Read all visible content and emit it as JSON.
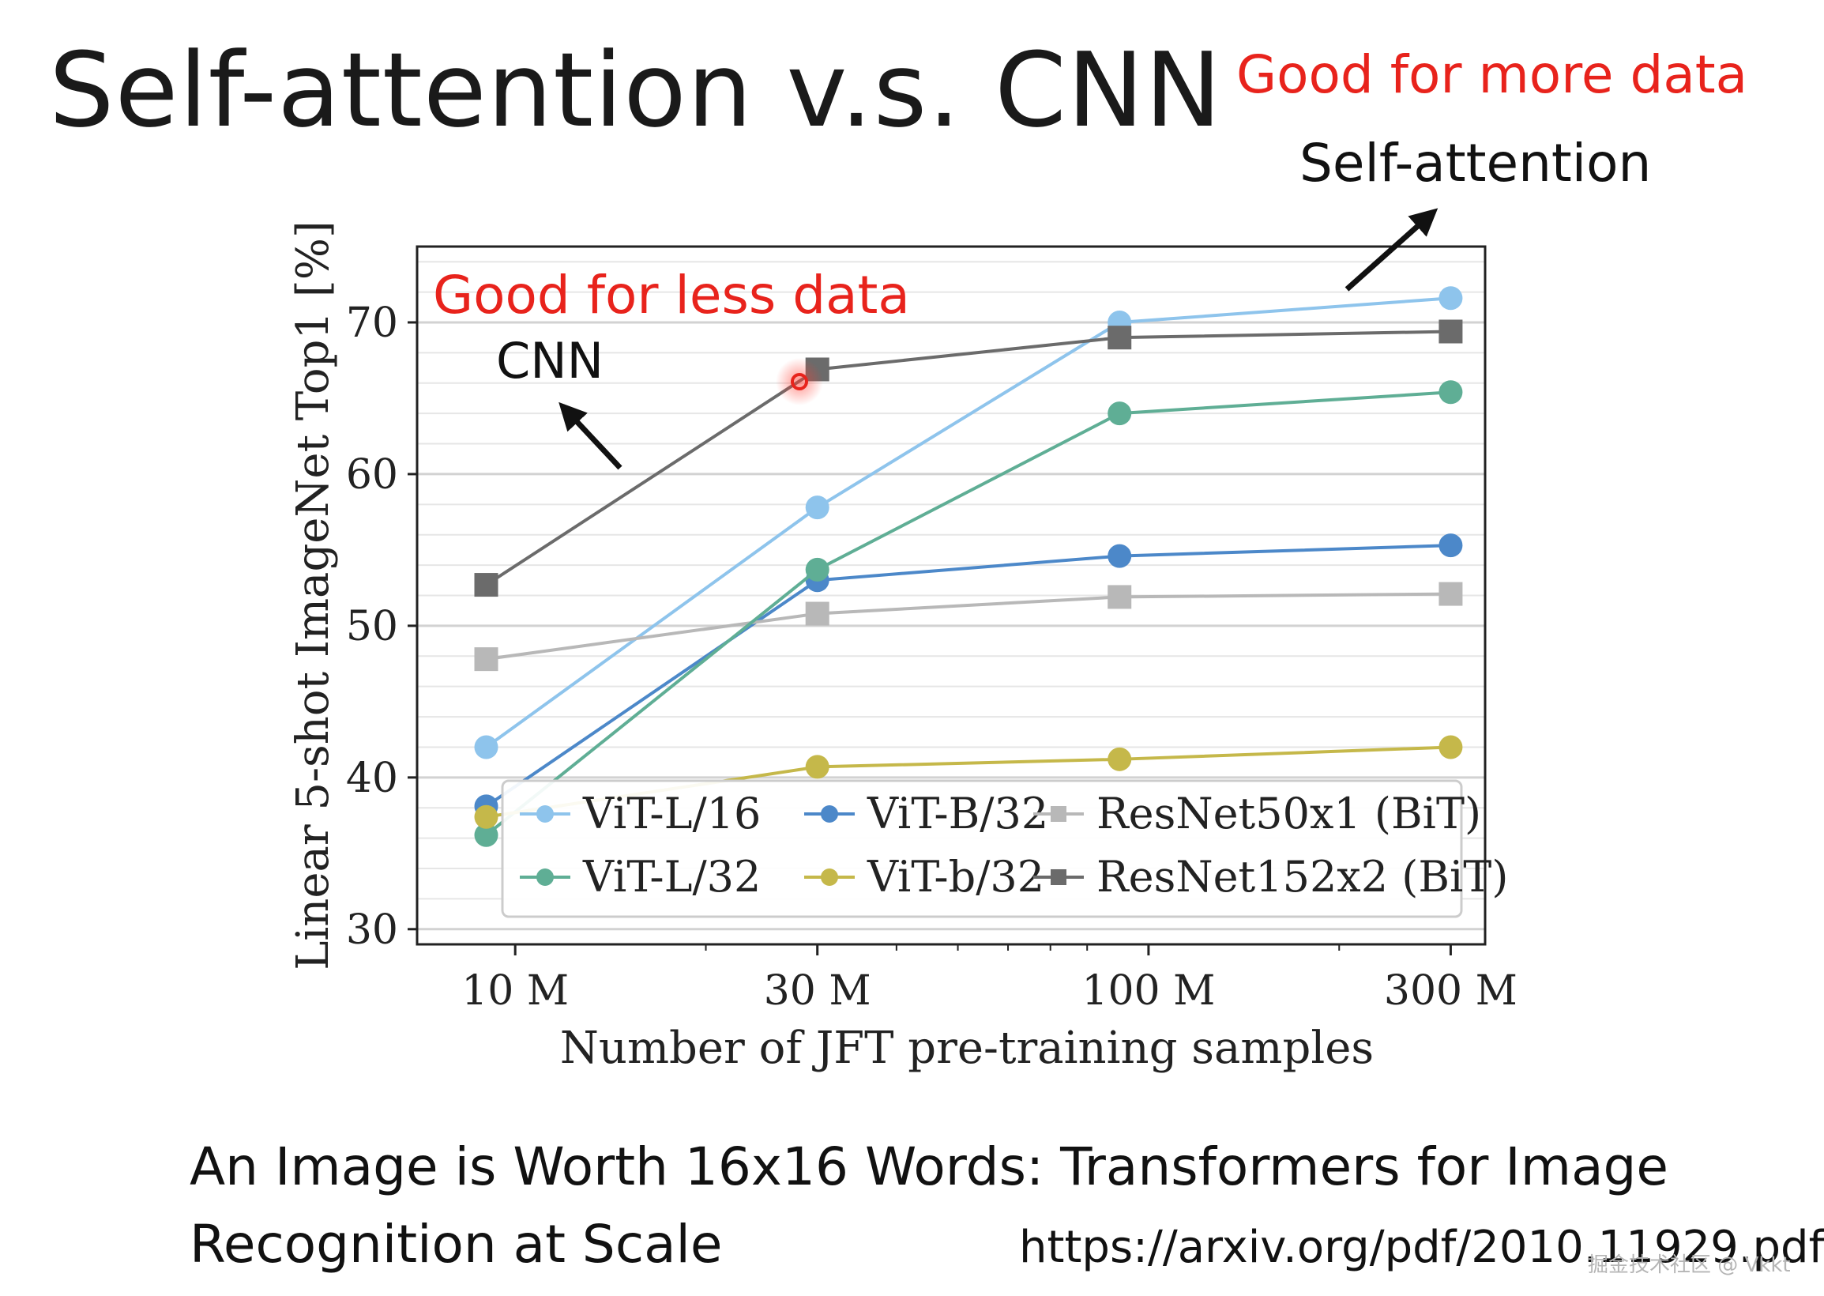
{
  "slide": {
    "title": "Self-attention v.s. CNN",
    "note_more": "Good for more data",
    "note_less": "Good for less data",
    "annot_self_attention": "Self-attention",
    "annot_cnn": "CNN",
    "paper_title": "An Image is Worth 16x16 Words: Transformers for Image Recognition at Scale",
    "paper_url": "https://arxiv.org/pdf/2010.11929.pdf",
    "watermark": "掘金技术社区 @ Vkkt"
  },
  "colors": {
    "annotation_red": "#e8231c"
  },
  "chart_data": {
    "type": "line",
    "title": "",
    "xlabel": "Number of JFT pre-training samples",
    "ylabel": "Linear 5-shot ImageNet Top1 [%]",
    "x_scale": "log",
    "x": [
      9,
      30,
      90,
      300
    ],
    "x_tick_labels": [
      "10 M",
      "30 M",
      "100 M",
      "300 M"
    ],
    "x_tick_values": [
      10,
      30,
      100,
      300
    ],
    "x_range": [
      7,
      340
    ],
    "ylim": [
      29,
      75
    ],
    "y_ticks": [
      30,
      40,
      50,
      60,
      70
    ],
    "y_minor_step": 2,
    "grid": true,
    "legend_position": "bottom-right",
    "series": [
      {
        "name": "ViT-L/16",
        "color": "#8ec4ec",
        "marker": "circle",
        "values": [
          42.0,
          57.8,
          70.0,
          71.6
        ]
      },
      {
        "name": "ViT-B/32",
        "color": "#4c88c9",
        "marker": "circle",
        "values": [
          38.1,
          53.0,
          54.6,
          55.3
        ]
      },
      {
        "name": "ResNet50x1 (BiT)",
        "color": "#b8b8b8",
        "marker": "square",
        "values": [
          47.8,
          50.8,
          51.9,
          52.1
        ]
      },
      {
        "name": "ViT-L/32",
        "color": "#5fae95",
        "marker": "circle",
        "values": [
          36.2,
          53.7,
          64.0,
          65.4
        ]
      },
      {
        "name": "ViT-b/32",
        "color": "#c5b84a",
        "marker": "circle",
        "values": [
          37.4,
          40.7,
          41.2,
          42.0
        ]
      },
      {
        "name": "ResNet152x2 (BiT)",
        "color": "#6b6b6b",
        "marker": "square",
        "values": [
          52.7,
          66.9,
          69.0,
          69.4
        ]
      }
    ]
  }
}
